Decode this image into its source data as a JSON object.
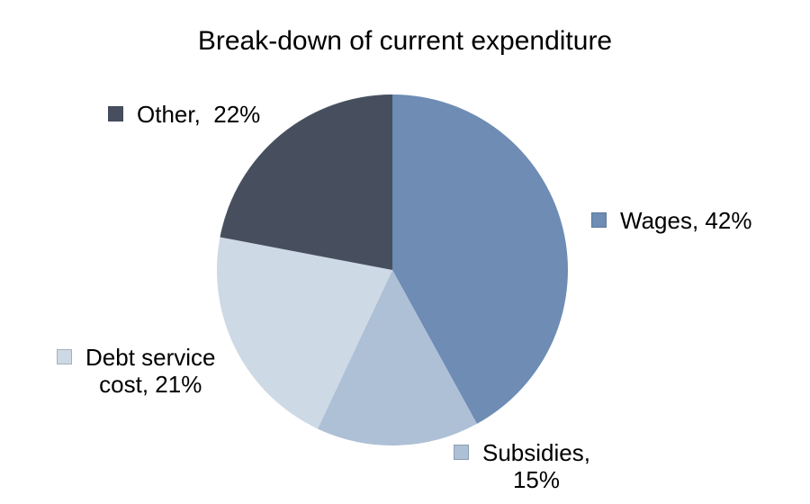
{
  "page": {
    "background_color": "#FFFFFF",
    "text_color": "#000000"
  },
  "chart_data": {
    "type": "pie",
    "title": "Break-down of current expenditure",
    "units": "%",
    "total": 100,
    "start_angle_deg": 0,
    "direction": "clockwise",
    "legend_position": "outside-labels",
    "slices": [
      {
        "label": "Wages",
        "value": 42,
        "color": "#6E8CB4",
        "label_text": "Wages, 42%"
      },
      {
        "label": "Subsidies",
        "value": 15,
        "color": "#AEC0D6",
        "label_text": "Subsidies,\n15%"
      },
      {
        "label": "Debt service cost",
        "value": 21,
        "color": "#CDD9E5",
        "label_text": "Debt service\ncost, 21%"
      },
      {
        "label": "Other",
        "value": 22,
        "color": "#474F5F",
        "label_text": "Other,  22%"
      }
    ]
  }
}
